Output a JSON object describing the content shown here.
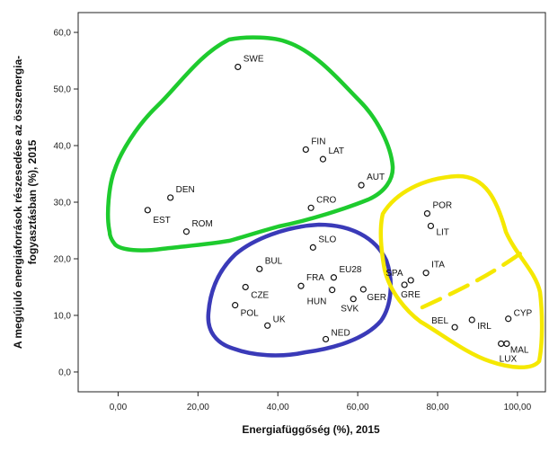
{
  "chart_data": {
    "type": "scatter",
    "xlabel": "Energiafüggőség (%), 2015",
    "ylabel_lines": [
      "A megújuló energiaforrások részesedése az összenergia-",
      "fogyasztásban (%), 2015"
    ],
    "xlim": [
      -10,
      107
    ],
    "ylim": [
      -3.5,
      63.5
    ],
    "xticks": [
      0,
      20,
      40,
      60,
      80,
      100
    ],
    "xtick_labels": [
      "0,00",
      "20,00",
      "40,00",
      "60,00",
      "80,00",
      "100,00"
    ],
    "yticks": [
      0,
      10,
      20,
      30,
      40,
      50,
      60
    ],
    "ytick_labels": [
      "0,0",
      "10,0",
      "20,0",
      "30,0",
      "40,0",
      "50,0",
      "60,0"
    ],
    "grid": false,
    "points": [
      {
        "label": "SWE",
        "x": 30.0,
        "y": 53.9
      },
      {
        "label": "FIN",
        "x": 47.0,
        "y": 39.3
      },
      {
        "label": "LAT",
        "x": 51.3,
        "y": 37.6
      },
      {
        "label": "AUT",
        "x": 60.9,
        "y": 33.0
      },
      {
        "label": "DEN",
        "x": 13.1,
        "y": 30.8
      },
      {
        "label": "EST",
        "x": 7.4,
        "y": 28.6
      },
      {
        "label": "ROM",
        "x": 17.1,
        "y": 24.8
      },
      {
        "label": "CRO",
        "x": 48.3,
        "y": 29.0
      },
      {
        "label": "SLO",
        "x": 48.8,
        "y": 22.0
      },
      {
        "label": "BUL",
        "x": 35.4,
        "y": 18.2
      },
      {
        "label": "EU28",
        "x": 54.0,
        "y": 16.7
      },
      {
        "label": "FRA",
        "x": 45.8,
        "y": 15.2
      },
      {
        "label": "HUN",
        "x": 53.6,
        "y": 14.5
      },
      {
        "label": "GER",
        "x": 61.4,
        "y": 14.6
      },
      {
        "label": "CZE",
        "x": 31.9,
        "y": 15.0
      },
      {
        "label": "SVK",
        "x": 58.9,
        "y": 12.9
      },
      {
        "label": "POL",
        "x": 29.3,
        "y": 11.8
      },
      {
        "label": "UK",
        "x": 37.4,
        "y": 8.2
      },
      {
        "label": "NED",
        "x": 52.0,
        "y": 5.8
      },
      {
        "label": "POR",
        "x": 77.4,
        "y": 28.0
      },
      {
        "label": "LIT",
        "x": 78.3,
        "y": 25.8
      },
      {
        "label": "ITA",
        "x": 77.1,
        "y": 17.5
      },
      {
        "label": "SPA",
        "x": 73.3,
        "y": 16.2
      },
      {
        "label": "GRE",
        "x": 71.7,
        "y": 15.4
      },
      {
        "label": "BEL",
        "x": 84.3,
        "y": 7.9
      },
      {
        "label": "IRL",
        "x": 88.6,
        "y": 9.2
      },
      {
        "label": "CYP",
        "x": 97.7,
        "y": 9.4
      },
      {
        "label": "MAL",
        "x": 97.3,
        "y": 5.0
      },
      {
        "label": "LUX",
        "x": 95.9,
        "y": 5.0
      }
    ],
    "cluster_colors": {
      "green": "#1ecb2e",
      "blue": "#3a3ab8",
      "yellow": "#f5e800"
    }
  }
}
